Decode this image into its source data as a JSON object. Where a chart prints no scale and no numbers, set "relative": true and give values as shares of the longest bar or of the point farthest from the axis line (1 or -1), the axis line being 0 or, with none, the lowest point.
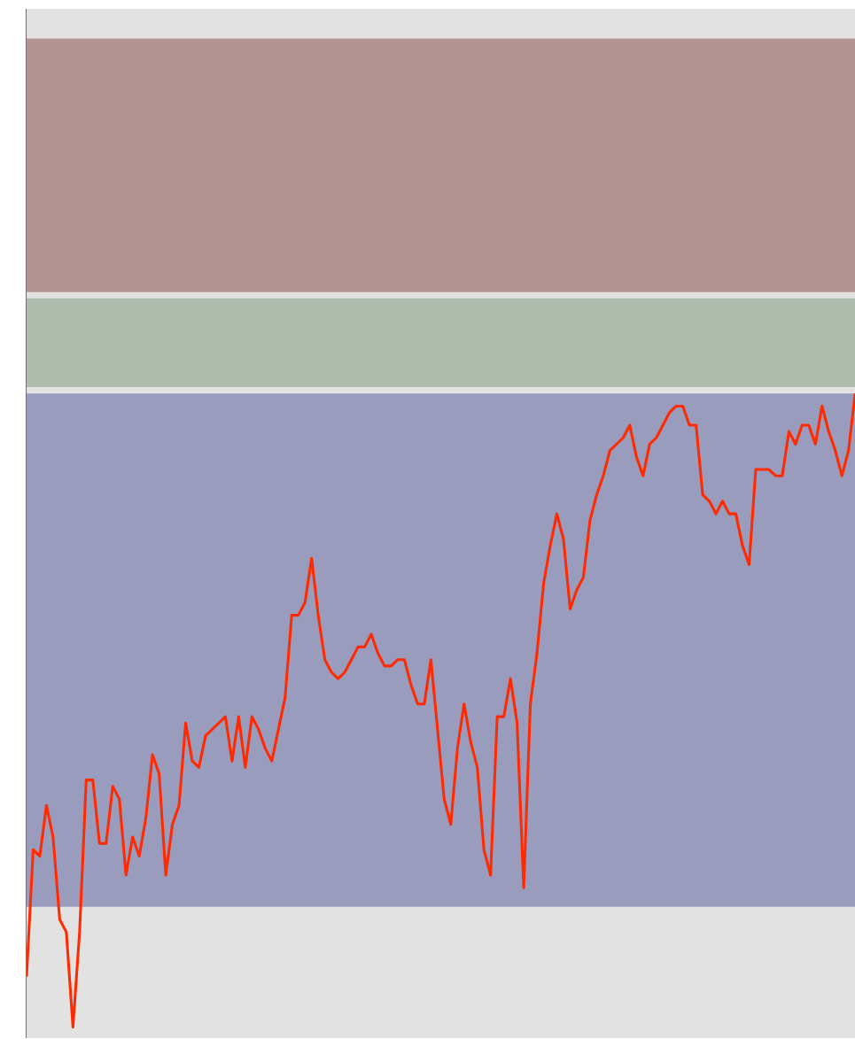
{
  "chart_data": {
    "type": "line",
    "relative": true,
    "color": "#ff2a00",
    "categories": [
      null,
      null,
      null,
      null,
      null,
      null,
      null,
      null,
      null,
      null,
      null,
      null,
      null,
      null,
      null,
      null,
      null,
      null,
      null,
      null,
      null,
      null,
      null,
      null,
      null,
      null,
      null,
      null,
      null,
      null,
      null,
      null,
      null,
      null,
      null,
      null,
      null,
      null,
      null,
      null,
      null,
      null,
      null,
      null,
      null,
      null,
      null,
      null,
      null,
      null,
      null,
      null,
      null,
      null,
      null,
      null,
      null,
      null,
      null,
      null,
      null,
      null,
      null,
      null,
      null,
      null,
      null,
      null,
      null,
      null,
      null,
      null,
      null,
      null,
      null,
      null,
      null,
      null,
      null,
      null,
      null,
      null,
      null,
      null,
      null,
      null,
      null,
      null,
      null,
      null,
      null,
      null,
      null,
      null,
      null,
      null,
      null,
      null,
      null,
      null,
      null,
      null,
      null,
      null,
      null,
      null,
      null,
      null,
      null,
      null,
      null,
      null,
      null,
      null,
      null,
      null,
      null,
      null,
      null,
      null,
      null,
      null,
      null,
      null,
      null,
      null
    ],
    "values": [
      0.08,
      0.28,
      0.27,
      0.35,
      0.3,
      0.17,
      0.15,
      0.0,
      0.15,
      0.39,
      0.39,
      0.29,
      0.29,
      0.38,
      0.36,
      0.24,
      0.3,
      0.27,
      0.33,
      0.43,
      0.4,
      0.24,
      0.32,
      0.35,
      0.48,
      0.42,
      0.41,
      0.46,
      0.47,
      0.48,
      0.49,
      0.42,
      0.49,
      0.41,
      0.49,
      0.47,
      0.44,
      0.42,
      0.47,
      0.52,
      0.65,
      0.65,
      0.67,
      0.74,
      0.65,
      0.58,
      0.56,
      0.55,
      0.56,
      0.58,
      0.6,
      0.6,
      0.62,
      0.59,
      0.57,
      0.57,
      0.58,
      0.58,
      0.54,
      0.51,
      0.51,
      0.58,
      0.47,
      0.36,
      0.32,
      0.44,
      0.51,
      0.45,
      0.41,
      0.28,
      0.24,
      0.49,
      0.49,
      0.55,
      0.48,
      0.22,
      0.51,
      0.59,
      0.7,
      0.76,
      0.81,
      0.77,
      0.66,
      0.69,
      0.71,
      0.8,
      0.84,
      0.87,
      0.91,
      0.92,
      0.93,
      0.95,
      0.9,
      0.87,
      0.92,
      0.93,
      0.95,
      0.97,
      0.98,
      0.98,
      0.95,
      0.95,
      0.84,
      0.83,
      0.81,
      0.83,
      0.81,
      0.81,
      0.76,
      0.73,
      0.88,
      0.88,
      0.88,
      0.87,
      0.87,
      0.94,
      0.92,
      0.95,
      0.95,
      0.92,
      0.98,
      0.94,
      0.91,
      0.87,
      0.91,
      1.0
    ],
    "bands": [
      {
        "axis": "y",
        "from": 0.19,
        "to": 1.0,
        "color": "#9a9cbe"
      },
      {
        "axis": "y",
        "from": 1.01,
        "to": 1.15,
        "color": "#aebcad"
      },
      {
        "axis": "y",
        "from": 1.16,
        "to": 1.56,
        "color": "#b39493"
      }
    ],
    "marker": "none",
    "line_style": "solid"
  }
}
